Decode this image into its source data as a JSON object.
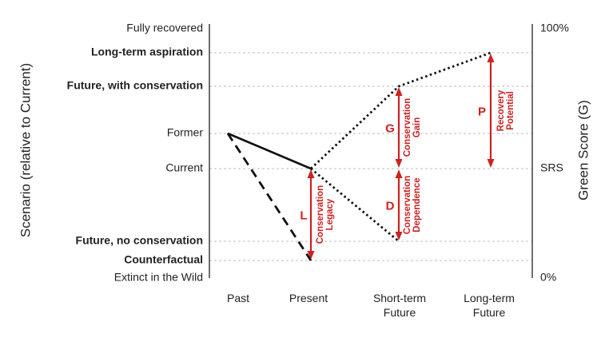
{
  "left_axis": {
    "title": "Scenario (relative to Current)",
    "levels": [
      {
        "key": "fully_recovered",
        "label": "Fully recovered",
        "bold": false
      },
      {
        "key": "long_term_aspiration",
        "label": "Long-term aspiration",
        "bold": true
      },
      {
        "key": "future_with_conservation",
        "label": "Future, with conservation",
        "bold": true
      },
      {
        "key": "former",
        "label": "Former",
        "bold": false
      },
      {
        "key": "current",
        "label": "Current",
        "bold": false
      },
      {
        "key": "future_no_conservation",
        "label": "Future, no conservation",
        "bold": true
      },
      {
        "key": "counterfactual",
        "label": "Counterfactual",
        "bold": true
      },
      {
        "key": "extinct_in_the_wild",
        "label": "Extinct in the Wild",
        "bold": false
      }
    ]
  },
  "right_axis": {
    "title": "Green Score (G)",
    "labels": {
      "top": "100%",
      "middle": "SRS",
      "bottom": "0%"
    }
  },
  "x_axis": {
    "categories": [
      {
        "key": "past",
        "lines": [
          "Past"
        ]
      },
      {
        "key": "present",
        "lines": [
          "Present"
        ]
      },
      {
        "key": "short_term_future",
        "lines": [
          "Short-term",
          "Future"
        ]
      },
      {
        "key": "long_term_future",
        "lines": [
          "Long-term",
          "Future"
        ]
      }
    ]
  },
  "trajectories": [
    {
      "name": "historical",
      "style": "solid",
      "points": [
        [
          "past",
          "former"
        ],
        [
          "present",
          "current"
        ]
      ]
    },
    {
      "name": "counterfactual",
      "style": "dashed",
      "points": [
        [
          "past",
          "former"
        ],
        [
          "present",
          "counterfactual"
        ]
      ]
    },
    {
      "name": "with conservation",
      "style": "dotted",
      "points": [
        [
          "present",
          "current"
        ],
        [
          "short_term_future",
          "future_with_conservation"
        ],
        [
          "long_term_future",
          "long_term_aspiration"
        ]
      ]
    },
    {
      "name": "no conservation",
      "style": "dotted",
      "points": [
        [
          "present",
          "current"
        ],
        [
          "short_term_future",
          "future_no_conservation"
        ]
      ]
    }
  ],
  "metrics": [
    {
      "letter": "L",
      "text": [
        "Conservation",
        "Legacy"
      ],
      "at": "present",
      "from": "counterfactual",
      "to": "current"
    },
    {
      "letter": "G",
      "text": [
        "Conservation",
        "Gain"
      ],
      "at": "short_term_future",
      "from": "current",
      "to": "future_with_conservation"
    },
    {
      "letter": "D",
      "text": [
        "Conservation",
        "Dependence"
      ],
      "at": "short_term_future",
      "from": "future_no_conservation",
      "to": "current"
    },
    {
      "letter": "P",
      "text": [
        "Recovery",
        "Potential"
      ],
      "at": "long_term_future",
      "from": "current",
      "to": "long_term_aspiration"
    }
  ],
  "colors": {
    "accent": "#cc2222",
    "line": "#111111",
    "grid": "#bdbdbd",
    "text": "#222222"
  }
}
